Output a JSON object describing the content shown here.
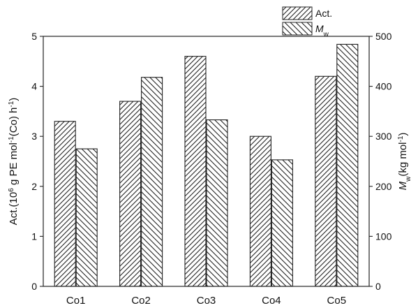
{
  "chart_data": {
    "type": "bar",
    "categories": [
      "Co1",
      "Co2",
      "Co3",
      "Co4",
      "Co5"
    ],
    "series": [
      {
        "name": "Act.",
        "axis": "left",
        "values": [
          3.3,
          3.7,
          4.6,
          3.0,
          4.2
        ],
        "hatch": "forward"
      },
      {
        "name": "M_w",
        "axis": "right",
        "values": [
          275,
          418,
          333,
          253,
          484
        ],
        "hatch": "back"
      }
    ],
    "y_left": {
      "label_main": "Act.(10",
      "label_sup1": "6",
      "label_mid": " g PE mol",
      "label_sup2": "-1",
      "label_mid2": "(Co) h",
      "label_sup3": "-1",
      "label_end": ")",
      "ylim": [
        0,
        5
      ],
      "ticks": [
        0,
        1,
        2,
        3,
        4,
        5
      ]
    },
    "y_right": {
      "label_italic": "M",
      "label_sub": "w",
      "label_rest": "(kg mol",
      "label_sup": "-1",
      "label_end": ")",
      "ylim": [
        0,
        500
      ],
      "ticks": [
        0,
        100,
        200,
        300,
        400,
        500
      ]
    },
    "legend": {
      "position": "top-right",
      "entries": [
        {
          "text": "Act.",
          "italic": false
        },
        {
          "text_italic": "M",
          "text_sub": "w"
        }
      ]
    },
    "colors": {
      "bar_fill": "#ffffff",
      "stroke": "#222222"
    }
  }
}
